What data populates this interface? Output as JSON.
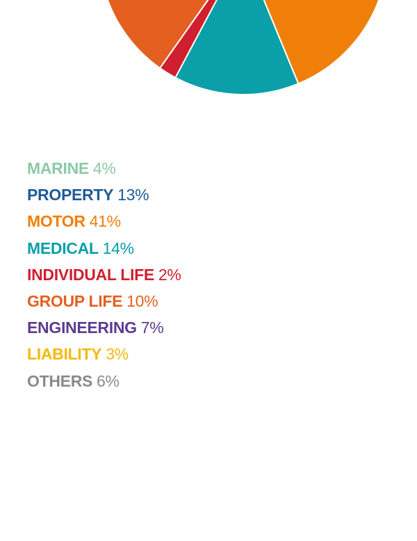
{
  "chart_data": {
    "type": "pie",
    "legend_placement": "below",
    "slices": [
      {
        "label": "MARINE",
        "value": 4,
        "value_label": "4%",
        "color": "#8dc9a8"
      },
      {
        "label": "PROPERTY",
        "value": 13,
        "value_label": "13%",
        "color": "#1f5a97"
      },
      {
        "label": "MOTOR",
        "value": 41,
        "value_label": "41%",
        "color": "#f07f0a"
      },
      {
        "label": "MEDICAL",
        "value": 14,
        "value_label": "14%",
        "color": "#0a9fa9"
      },
      {
        "label": "INDIVIDUAL LIFE",
        "value": 2,
        "value_label": "2%",
        "color": "#d0202f"
      },
      {
        "label": "GROUP LIFE",
        "value": 10,
        "value_label": "10%",
        "color": "#e46021"
      },
      {
        "label": "ENGINEERING",
        "value": 7,
        "value_label": "7%",
        "color": "#5e3b8f"
      },
      {
        "label": "LIABILITY",
        "value": 3,
        "value_label": "3%",
        "color": "#f5b90f"
      },
      {
        "label": "OTHERS",
        "value": 6,
        "value_label": "6%",
        "color": "#8a8a8a"
      }
    ]
  }
}
